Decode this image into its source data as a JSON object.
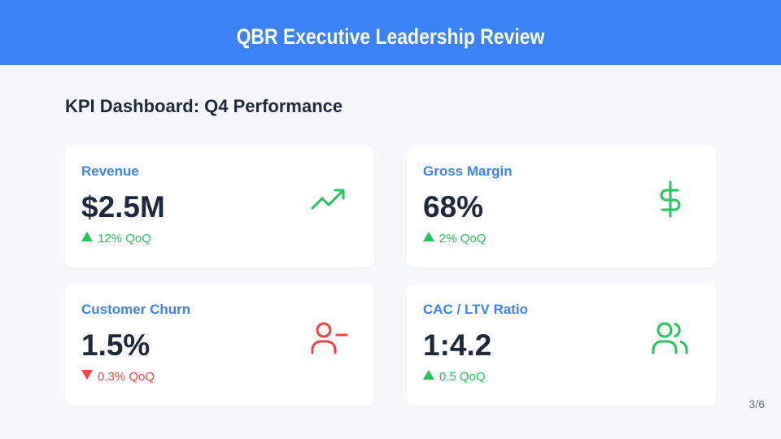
{
  "header": {
    "title": "QBR Executive Leadership Review"
  },
  "section": {
    "title": "KPI Dashboard: Q4 Performance"
  },
  "cards": [
    {
      "label": "Revenue",
      "value": "$2.5M",
      "change": "12% QoQ",
      "trend": "up"
    },
    {
      "label": "Gross Margin",
      "value": "68%",
      "change": "2% QoQ",
      "trend": "up"
    },
    {
      "label": "Customer Churn",
      "value": "1.5%",
      "change": "0.3% QoQ",
      "trend": "down"
    },
    {
      "label": "CAC / LTV Ratio",
      "value": "1:4.2",
      "change": "0.5 QoQ",
      "trend": "up"
    }
  ],
  "footer": {
    "page": "3/6"
  }
}
